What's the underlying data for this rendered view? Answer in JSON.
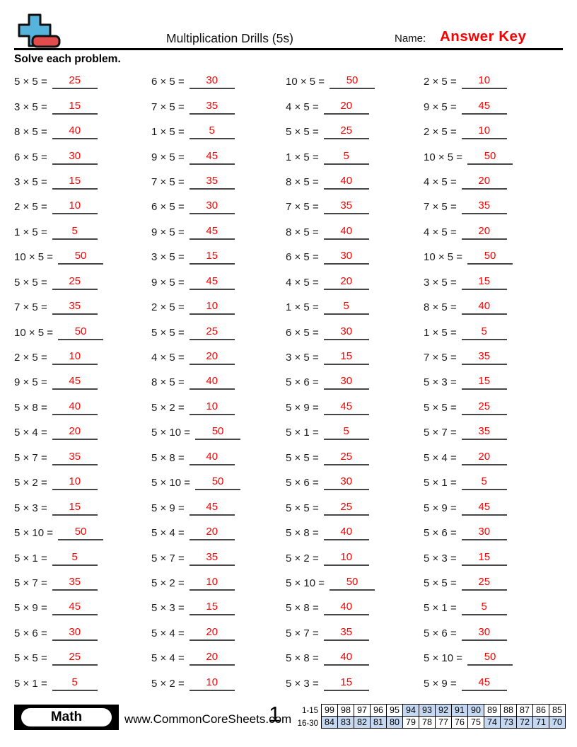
{
  "header": {
    "title": "Multiplication Drills (5s)",
    "name_label": "Name:",
    "name_value": "Answer Key",
    "instruction": "Solve each problem."
  },
  "colors": {
    "answer_red": "#fb0000",
    "logo_blue": "#56b3dc",
    "logo_red": "#e34c4c",
    "table_shade_blue": "#c5d8f2"
  },
  "problems": {
    "columns": [
      [
        {
          "q": "5 × 5 =",
          "a": "25"
        },
        {
          "q": "3 × 5 =",
          "a": "15"
        },
        {
          "q": "8 × 5 =",
          "a": "40"
        },
        {
          "q": "6 × 5 =",
          "a": "30"
        },
        {
          "q": "3 × 5 =",
          "a": "15"
        },
        {
          "q": "2 × 5 =",
          "a": "10"
        },
        {
          "q": "1 × 5 =",
          "a": "5"
        },
        {
          "q": "10 × 5 =",
          "a": "50"
        },
        {
          "q": "5 × 5 =",
          "a": "25"
        },
        {
          "q": "7 × 5 =",
          "a": "35"
        },
        {
          "q": "10 × 5 =",
          "a": "50"
        },
        {
          "q": "2 × 5 =",
          "a": "10"
        },
        {
          "q": "9 × 5 =",
          "a": "45"
        },
        {
          "q": "5 × 8 =",
          "a": "40"
        },
        {
          "q": "5 × 4 =",
          "a": "20"
        },
        {
          "q": "5 × 7 =",
          "a": "35"
        },
        {
          "q": "5 × 2 =",
          "a": "10"
        },
        {
          "q": "5 × 3 =",
          "a": "15"
        },
        {
          "q": "5 × 10 =",
          "a": "50"
        },
        {
          "q": "5 × 1 =",
          "a": "5"
        },
        {
          "q": "5 × 7 =",
          "a": "35"
        },
        {
          "q": "5 × 9 =",
          "a": "45"
        },
        {
          "q": "5 × 6 =",
          "a": "30"
        },
        {
          "q": "5 × 5 =",
          "a": "25"
        },
        {
          "q": "5 × 1 =",
          "a": "5"
        }
      ],
      [
        {
          "q": "6 × 5 =",
          "a": "30"
        },
        {
          "q": "7 × 5 =",
          "a": "35"
        },
        {
          "q": "1 × 5 =",
          "a": "5"
        },
        {
          "q": "9 × 5 =",
          "a": "45"
        },
        {
          "q": "7 × 5 =",
          "a": "35"
        },
        {
          "q": "6 × 5 =",
          "a": "30"
        },
        {
          "q": "9 × 5 =",
          "a": "45"
        },
        {
          "q": "3 × 5 =",
          "a": "15"
        },
        {
          "q": "9 × 5 =",
          "a": "45"
        },
        {
          "q": "2 × 5 =",
          "a": "10"
        },
        {
          "q": "5 × 5 =",
          "a": "25"
        },
        {
          "q": "4 × 5 =",
          "a": "20"
        },
        {
          "q": "8 × 5 =",
          "a": "40"
        },
        {
          "q": "5 × 2 =",
          "a": "10"
        },
        {
          "q": "5 × 10 =",
          "a": "50"
        },
        {
          "q": "5 × 8 =",
          "a": "40"
        },
        {
          "q": "5 × 10 =",
          "a": "50"
        },
        {
          "q": "5 × 9 =",
          "a": "45"
        },
        {
          "q": "5 × 4 =",
          "a": "20"
        },
        {
          "q": "5 × 7 =",
          "a": "35"
        },
        {
          "q": "5 × 2 =",
          "a": "10"
        },
        {
          "q": "5 × 3 =",
          "a": "15"
        },
        {
          "q": "5 × 4 =",
          "a": "20"
        },
        {
          "q": "5 × 4 =",
          "a": "20"
        },
        {
          "q": "5 × 2 =",
          "a": "10"
        }
      ],
      [
        {
          "q": "10 × 5 =",
          "a": "50"
        },
        {
          "q": "4 × 5 =",
          "a": "20"
        },
        {
          "q": "5 × 5 =",
          "a": "25"
        },
        {
          "q": "1 × 5 =",
          "a": "5"
        },
        {
          "q": "8 × 5 =",
          "a": "40"
        },
        {
          "q": "7 × 5 =",
          "a": "35"
        },
        {
          "q": "8 × 5 =",
          "a": "40"
        },
        {
          "q": "6 × 5 =",
          "a": "30"
        },
        {
          "q": "4 × 5 =",
          "a": "20"
        },
        {
          "q": "1 × 5 =",
          "a": "5"
        },
        {
          "q": "6 × 5 =",
          "a": "30"
        },
        {
          "q": "3 × 5 =",
          "a": "15"
        },
        {
          "q": "5 × 6 =",
          "a": "30"
        },
        {
          "q": "5 × 9 =",
          "a": "45"
        },
        {
          "q": "5 × 1 =",
          "a": "5"
        },
        {
          "q": "5 × 5 =",
          "a": "25"
        },
        {
          "q": "5 × 6 =",
          "a": "30"
        },
        {
          "q": "5 × 5 =",
          "a": "25"
        },
        {
          "q": "5 × 8 =",
          "a": "40"
        },
        {
          "q": "5 × 2 =",
          "a": "10"
        },
        {
          "q": "5 × 10 =",
          "a": "50"
        },
        {
          "q": "5 × 8 =",
          "a": "40"
        },
        {
          "q": "5 × 7 =",
          "a": "35"
        },
        {
          "q": "5 × 8 =",
          "a": "40"
        },
        {
          "q": "5 × 3 =",
          "a": "15"
        }
      ],
      [
        {
          "q": "2 × 5 =",
          "a": "10"
        },
        {
          "q": "9 × 5 =",
          "a": "45"
        },
        {
          "q": "2 × 5 =",
          "a": "10"
        },
        {
          "q": "10 × 5 =",
          "a": "50"
        },
        {
          "q": "4 × 5 =",
          "a": "20"
        },
        {
          "q": "7 × 5 =",
          "a": "35"
        },
        {
          "q": "4 × 5 =",
          "a": "20"
        },
        {
          "q": "10 × 5 =",
          "a": "50"
        },
        {
          "q": "3 × 5 =",
          "a": "15"
        },
        {
          "q": "8 × 5 =",
          "a": "40"
        },
        {
          "q": "1 × 5 =",
          "a": "5"
        },
        {
          "q": "7 × 5 =",
          "a": "35"
        },
        {
          "q": "5 × 3 =",
          "a": "15"
        },
        {
          "q": "5 × 5 =",
          "a": "25"
        },
        {
          "q": "5 × 7 =",
          "a": "35"
        },
        {
          "q": "5 × 4 =",
          "a": "20"
        },
        {
          "q": "5 × 1 =",
          "a": "5"
        },
        {
          "q": "5 × 9 =",
          "a": "45"
        },
        {
          "q": "5 × 6 =",
          "a": "30"
        },
        {
          "q": "5 × 3 =",
          "a": "15"
        },
        {
          "q": "5 × 5 =",
          "a": "25"
        },
        {
          "q": "5 × 1 =",
          "a": "5"
        },
        {
          "q": "5 × 6 =",
          "a": "30"
        },
        {
          "q": "5 × 10 =",
          "a": "50"
        },
        {
          "q": "5 × 9 =",
          "a": "45"
        }
      ]
    ]
  },
  "footer": {
    "subject": "Math",
    "website": "www.CommonCoreSheets.com",
    "page_number": "1",
    "score_table": {
      "rows": [
        {
          "label": "1-15",
          "values": [
            99,
            98,
            97,
            96,
            95,
            94,
            93,
            92,
            91,
            90,
            89,
            88,
            87,
            86,
            85
          ],
          "shaded": [
            false,
            false,
            false,
            false,
            false,
            true,
            true,
            true,
            true,
            true,
            false,
            false,
            false,
            false,
            false
          ]
        },
        {
          "label": "16-30",
          "values": [
            84,
            83,
            82,
            81,
            80,
            79,
            78,
            77,
            76,
            75,
            74,
            73,
            72,
            71,
            70
          ],
          "shaded": [
            true,
            true,
            true,
            true,
            true,
            false,
            false,
            false,
            false,
            false,
            true,
            true,
            true,
            true,
            true
          ]
        }
      ]
    }
  }
}
